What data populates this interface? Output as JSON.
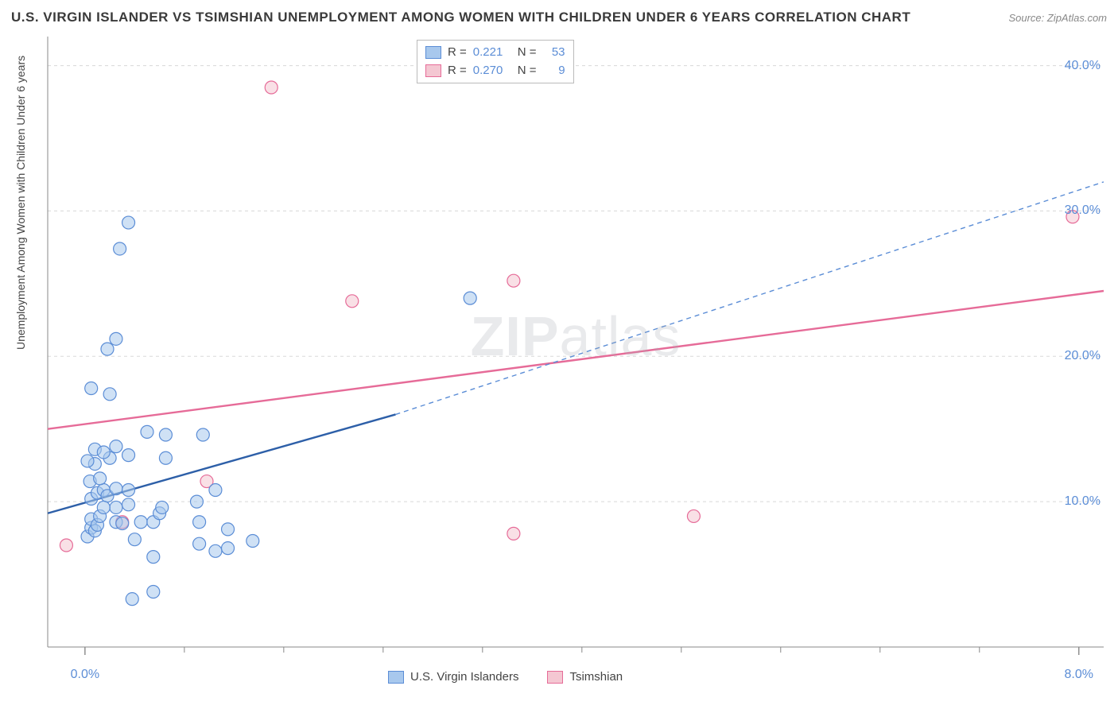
{
  "title": "U.S. VIRGIN ISLANDER VS TSIMSHIAN UNEMPLOYMENT AMONG WOMEN WITH CHILDREN UNDER 6 YEARS CORRELATION CHART",
  "source": "Source: ZipAtlas.com",
  "y_axis_label": "Unemployment Among Women with Children Under 6 years",
  "watermark": "ZIPatlas",
  "chart": {
    "type": "scatter",
    "background_color": "#ffffff",
    "grid_color": "#d8d8d8",
    "grid_dash": "4 4",
    "axis_color": "#888888",
    "tick_color": "#888888",
    "axis_label_color": "#5b8dd6",
    "axis_label_fontsize": 16,
    "title_fontsize": 17,
    "title_color": "#3a3a3a",
    "xlim": [
      -0.3,
      8.2
    ],
    "ylim": [
      0,
      42
    ],
    "y_ticks": [
      10,
      20,
      30,
      40
    ],
    "y_tick_labels": [
      "10.0%",
      "20.0%",
      "30.0%",
      "40.0%"
    ],
    "x_ticks": [
      0,
      8
    ],
    "x_tick_labels": [
      "0.0%",
      "8.0%"
    ],
    "x_minor_ticks": [
      0.8,
      1.6,
      2.4,
      3.2,
      4.0,
      4.8,
      5.6,
      6.4,
      7.2
    ],
    "marker_radius": 8,
    "marker_opacity": 0.55,
    "marker_stroke_width": 1.2
  },
  "series": [
    {
      "name": "U.S. Virgin Islanders",
      "color_fill": "#a8c8ed",
      "color_stroke": "#5b8dd6",
      "r_value": "0.221",
      "n_value": "53",
      "trend": {
        "x1": -0.3,
        "y1": 9.2,
        "x2": 2.5,
        "y2": 16.0,
        "solid_color": "#2d5fa8",
        "solid_width": 2.4,
        "dash_x2": 8.2,
        "dash_y2": 32.0,
        "dash_color": "#5b8dd6",
        "dash_width": 1.4,
        "dash": "6 5"
      },
      "points": [
        [
          0.02,
          7.6
        ],
        [
          0.05,
          8.2
        ],
        [
          0.08,
          8.0
        ],
        [
          0.05,
          8.8
        ],
        [
          0.1,
          8.4
        ],
        [
          0.12,
          9.0
        ],
        [
          0.05,
          10.2
        ],
        [
          0.1,
          10.6
        ],
        [
          0.15,
          10.8
        ],
        [
          0.04,
          11.4
        ],
        [
          0.12,
          11.6
        ],
        [
          0.18,
          10.4
        ],
        [
          0.25,
          8.6
        ],
        [
          0.25,
          9.6
        ],
        [
          0.3,
          8.5
        ],
        [
          0.35,
          9.8
        ],
        [
          0.4,
          7.4
        ],
        [
          0.45,
          8.6
        ],
        [
          0.55,
          8.6
        ],
        [
          0.6,
          9.2
        ],
        [
          0.62,
          9.6
        ],
        [
          0.25,
          10.9
        ],
        [
          0.35,
          10.8
        ],
        [
          0.08,
          12.6
        ],
        [
          0.2,
          13.0
        ],
        [
          0.08,
          13.6
        ],
        [
          0.15,
          13.4
        ],
        [
          0.25,
          13.8
        ],
        [
          0.35,
          13.2
        ],
        [
          0.5,
          14.8
        ],
        [
          0.65,
          14.6
        ],
        [
          0.95,
          14.6
        ],
        [
          0.05,
          17.8
        ],
        [
          0.2,
          17.4
        ],
        [
          0.18,
          20.5
        ],
        [
          0.25,
          21.2
        ],
        [
          0.02,
          12.8
        ],
        [
          0.65,
          13.0
        ],
        [
          0.28,
          27.4
        ],
        [
          0.35,
          29.2
        ],
        [
          0.38,
          3.3
        ],
        [
          0.55,
          3.8
        ],
        [
          0.92,
          7.1
        ],
        [
          1.05,
          6.6
        ],
        [
          1.15,
          6.8
        ],
        [
          1.15,
          8.1
        ],
        [
          0.92,
          8.6
        ],
        [
          0.9,
          10.0
        ],
        [
          1.05,
          10.8
        ],
        [
          1.35,
          7.3
        ],
        [
          3.1,
          24.0
        ],
        [
          0.55,
          6.2
        ],
        [
          0.15,
          9.6
        ]
      ]
    },
    {
      "name": "Tsimshian",
      "color_fill": "#f4c7d2",
      "color_stroke": "#e66b98",
      "r_value": "0.270",
      "n_value": "9",
      "trend": {
        "x1": -0.3,
        "y1": 15.0,
        "x2": 8.2,
        "y2": 24.5,
        "solid_color": "#e66b98",
        "solid_width": 2.4
      },
      "points": [
        [
          -0.15,
          7.0
        ],
        [
          0.3,
          8.6
        ],
        [
          0.98,
          11.4
        ],
        [
          1.5,
          38.5
        ],
        [
          2.15,
          23.8
        ],
        [
          3.45,
          25.2
        ],
        [
          3.45,
          7.8
        ],
        [
          4.9,
          9.0
        ],
        [
          7.95,
          29.6
        ]
      ]
    }
  ],
  "legend_top": {
    "r_label": "R  =",
    "n_label": "N  ="
  },
  "legend_bottom": {
    "items": [
      "U.S. Virgin Islanders",
      "Tsimshian"
    ]
  }
}
